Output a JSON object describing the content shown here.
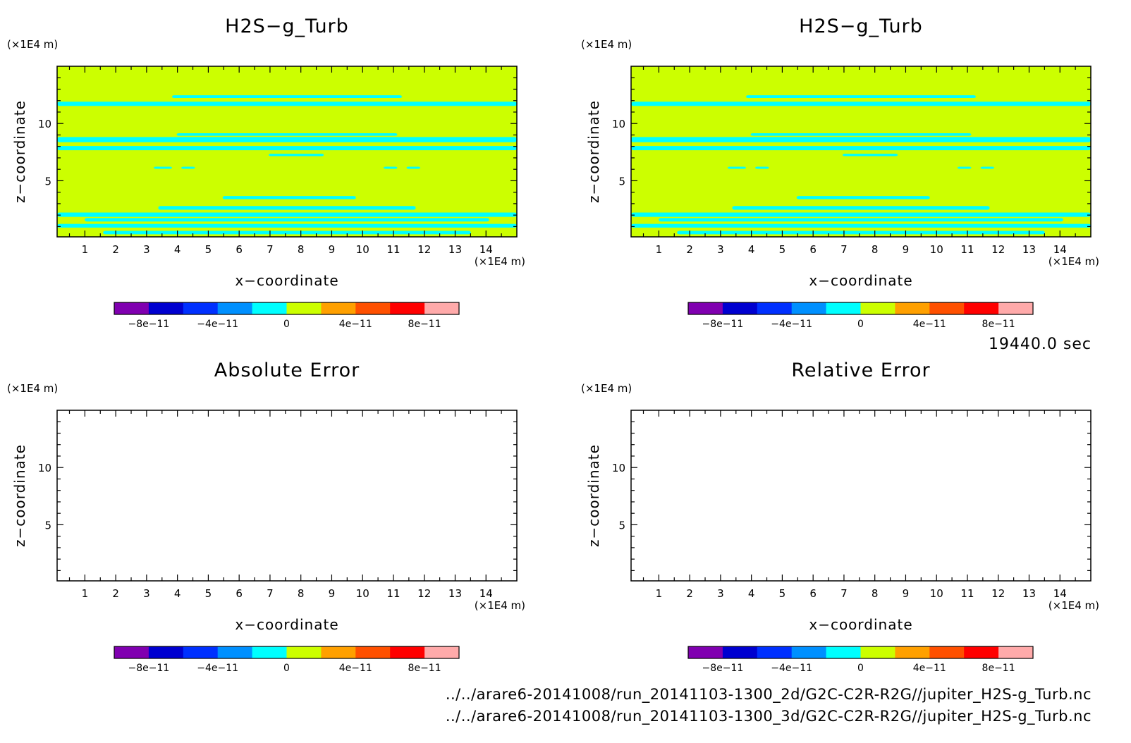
{
  "figure": {
    "time_label": "19440.0 sec",
    "file_lines": [
      "../../arare6-20141008/run_20141103-1300_2d/G2C-C2R-R2G//jupiter_H2S-g_Turb.nc",
      "../../arare6-20141008/run_20141103-1300_3d/G2C-C2R-R2G//jupiter_H2S-g_Turb.nc"
    ]
  },
  "chart_data": [
    {
      "type": "heatmap",
      "title": "H2S−g_Turb",
      "xlabel": "x−coordinate",
      "ylabel": "z−coordinate",
      "x_unit": "(×1E4 m)",
      "y_unit": "(×1E4 m)",
      "xlim": [
        0.1,
        15
      ],
      "ylim": [
        0.1,
        15
      ],
      "x_ticks": [
        1,
        2,
        3,
        4,
        5,
        6,
        7,
        8,
        9,
        10,
        11,
        12,
        13,
        14
      ],
      "y_ticks": [
        5,
        10
      ],
      "filled": true,
      "background_color": "#ccff00",
      "stripe_color": "#00ffff",
      "colorbar": {
        "levels": [
          -1e-10,
          -8e-11,
          -6e-11,
          -4e-11,
          -2e-11,
          0,
          2e-11,
          4e-11,
          6e-11,
          8e-11,
          1e-10
        ],
        "colors": [
          "#8000b0",
          "#0000d0",
          "#0030ff",
          "#0090ff",
          "#00ffff",
          "#ccff00",
          "#ffa000",
          "#ff5000",
          "#ff0000",
          "#ffaaaa"
        ],
        "tick_labels": [
          "−8e−11",
          "−4e−11",
          "0",
          "4e−11",
          "8e−11"
        ]
      }
    },
    {
      "type": "heatmap",
      "title": "H2S−g_Turb",
      "xlabel": "x−coordinate",
      "ylabel": "z−coordinate",
      "x_unit": "(×1E4 m)",
      "y_unit": "(×1E4 m)",
      "xlim": [
        0.1,
        15
      ],
      "ylim": [
        0.1,
        15
      ],
      "x_ticks": [
        1,
        2,
        3,
        4,
        5,
        6,
        7,
        8,
        9,
        10,
        11,
        12,
        13,
        14
      ],
      "y_ticks": [
        5,
        10
      ],
      "filled": true,
      "background_color": "#ccff00",
      "stripe_color": "#00ffff",
      "colorbar": {
        "levels": [
          -1e-10,
          -8e-11,
          -6e-11,
          -4e-11,
          -2e-11,
          0,
          2e-11,
          4e-11,
          6e-11,
          8e-11,
          1e-10
        ],
        "colors": [
          "#8000b0",
          "#0000d0",
          "#0030ff",
          "#0090ff",
          "#00ffff",
          "#ccff00",
          "#ffa000",
          "#ff5000",
          "#ff0000",
          "#ffaaaa"
        ],
        "tick_labels": [
          "−8e−11",
          "−4e−11",
          "0",
          "4e−11",
          "8e−11"
        ]
      }
    },
    {
      "type": "heatmap",
      "title": "Absolute Error",
      "xlabel": "x−coordinate",
      "ylabel": "z−coordinate",
      "x_unit": "(×1E4 m)",
      "y_unit": "(×1E4 m)",
      "xlim": [
        0.1,
        15
      ],
      "ylim": [
        0.1,
        15
      ],
      "x_ticks": [
        1,
        2,
        3,
        4,
        5,
        6,
        7,
        8,
        9,
        10,
        11,
        12,
        13,
        14
      ],
      "y_ticks": [
        5,
        10
      ],
      "filled": false,
      "colorbar": {
        "levels": [
          -1e-10,
          -8e-11,
          -6e-11,
          -4e-11,
          -2e-11,
          0,
          2e-11,
          4e-11,
          6e-11,
          8e-11,
          1e-10
        ],
        "colors": [
          "#8000b0",
          "#0000d0",
          "#0030ff",
          "#0090ff",
          "#00ffff",
          "#ccff00",
          "#ffa000",
          "#ff5000",
          "#ff0000",
          "#ffaaaa"
        ],
        "tick_labels": [
          "−8e−11",
          "−4e−11",
          "0",
          "4e−11",
          "8e−11"
        ]
      }
    },
    {
      "type": "heatmap",
      "title": "Relative Error",
      "xlabel": "x−coordinate",
      "ylabel": "z−coordinate",
      "x_unit": "(×1E4 m)",
      "y_unit": "(×1E4 m)",
      "xlim": [
        0.1,
        15
      ],
      "ylim": [
        0.1,
        15
      ],
      "x_ticks": [
        1,
        2,
        3,
        4,
        5,
        6,
        7,
        8,
        9,
        10,
        11,
        12,
        13,
        14
      ],
      "y_ticks": [
        5,
        10
      ],
      "filled": false,
      "colorbar": {
        "levels": [
          -1e-10,
          -8e-11,
          -6e-11,
          -4e-11,
          -2e-11,
          0,
          2e-11,
          4e-11,
          6e-11,
          8e-11,
          1e-10
        ],
        "colors": [
          "#8000b0",
          "#0000d0",
          "#0030ff",
          "#0090ff",
          "#00ffff",
          "#ccff00",
          "#ffa000",
          "#ff5000",
          "#ff0000",
          "#ffaaaa"
        ],
        "tick_labels": [
          "−8e−11",
          "−4e−11",
          "0",
          "4e−11",
          "8e−11"
        ]
      }
    }
  ]
}
